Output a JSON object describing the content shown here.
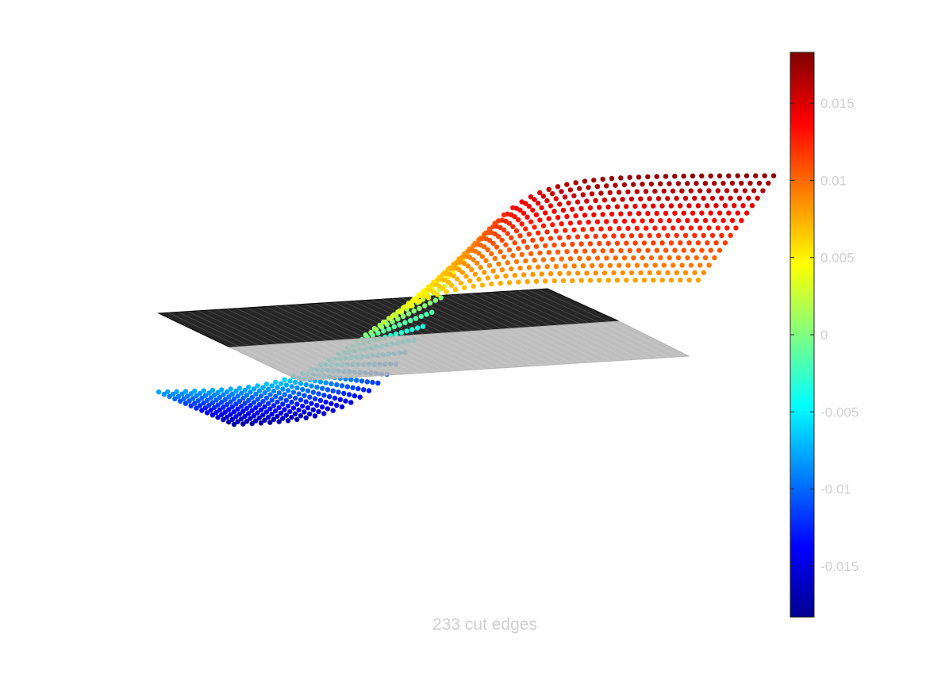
{
  "chart_data": {
    "type": "scatter",
    "caption": "233 cut edges",
    "colormap": "jet",
    "colormap_stops": [
      "#00008f",
      "#0000ff",
      "#0080ff",
      "#00ffff",
      "#80ff80",
      "#ffff00",
      "#ff8000",
      "#ff0000",
      "#800000"
    ],
    "colorbar": {
      "range": [
        -0.0183,
        0.0183
      ],
      "ticks": [
        0.015,
        0.01,
        0.005,
        0,
        -0.005,
        -0.01,
        -0.015
      ],
      "tick_labels": [
        "0.015",
        "0.01",
        "0.005",
        "0",
        "-0.005",
        "-0.01",
        "-0.015"
      ]
    },
    "axes_visible": false,
    "value_range": [
      -0.018,
      0.018
    ],
    "planes": [
      {
        "name": "back",
        "color": "#000000"
      },
      {
        "name": "front",
        "color": "#b4b4b4"
      }
    ]
  }
}
